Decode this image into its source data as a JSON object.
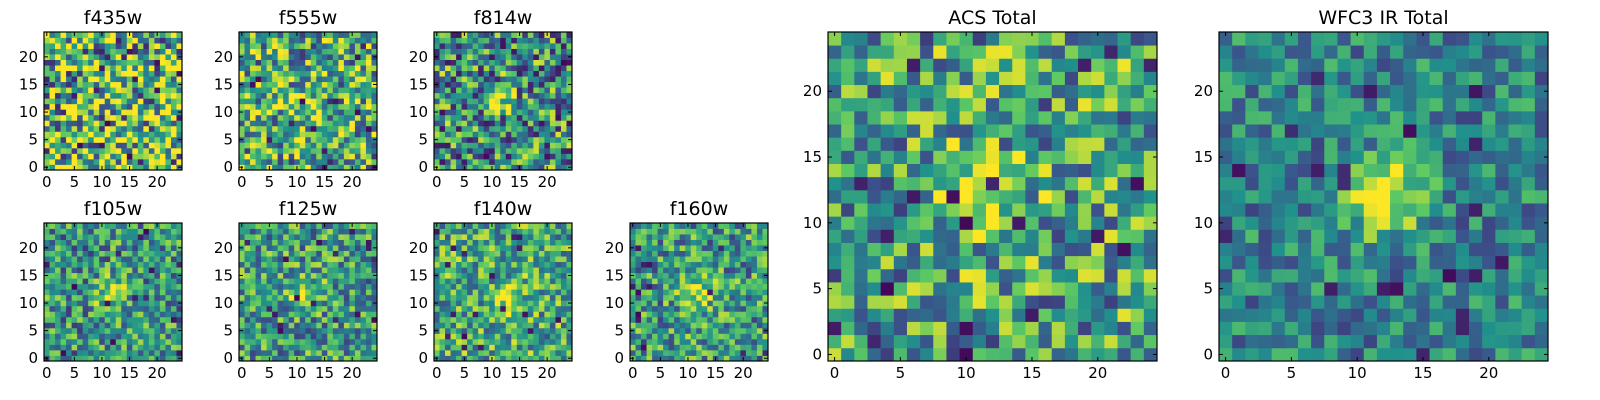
{
  "colormap": [
    "#440154",
    "#3b528b",
    "#21918c",
    "#5ec962",
    "#fde725"
  ],
  "chart_data": [
    {
      "type": "heatmap",
      "title": "f435w",
      "grid": [
        25,
        25
      ],
      "seed": 11,
      "blob": [
        12,
        12
      ],
      "blob_strength": 0.0,
      "noise": 0.55,
      "base": 0.66,
      "xticks": [
        "0",
        "5",
        "10",
        "15",
        "20"
      ],
      "yticks": [
        "0",
        "5",
        "10",
        "15",
        "20"
      ]
    },
    {
      "type": "heatmap",
      "title": "f555w",
      "grid": [
        25,
        25
      ],
      "seed": 23,
      "blob": [
        11,
        12
      ],
      "blob_strength": 0.25,
      "noise": 0.45,
      "base": 0.62,
      "xticks": [
        "0",
        "5",
        "10",
        "15",
        "20"
      ],
      "yticks": [
        "0",
        "5",
        "10",
        "15",
        "20"
      ]
    },
    {
      "type": "heatmap",
      "title": "f814w",
      "grid": [
        25,
        25
      ],
      "seed": 37,
      "blob": [
        11,
        12
      ],
      "blob_strength": 0.35,
      "noise": 0.45,
      "base": 0.5,
      "xticks": [
        "0",
        "5",
        "10",
        "15",
        "20"
      ],
      "yticks": [
        "0",
        "5",
        "10",
        "15",
        "20"
      ]
    },
    {
      "type": "heatmap",
      "title": "f105w",
      "grid": [
        25,
        25
      ],
      "seed": 41,
      "blob": [
        12,
        12
      ],
      "blob_strength": 0.45,
      "noise": 0.35,
      "base": 0.52,
      "xticks": [
        "0",
        "5",
        "10",
        "15",
        "20"
      ],
      "yticks": [
        "0",
        "5",
        "10",
        "15",
        "20"
      ]
    },
    {
      "type": "heatmap",
      "title": "f125w",
      "grid": [
        25,
        25
      ],
      "seed": 53,
      "blob": [
        11,
        12
      ],
      "blob_strength": 0.35,
      "noise": 0.35,
      "base": 0.55,
      "xticks": [
        "0",
        "5",
        "10",
        "15",
        "20"
      ],
      "yticks": [
        "0",
        "5",
        "10",
        "15",
        "20"
      ]
    },
    {
      "type": "heatmap",
      "title": "f140w",
      "grid": [
        25,
        25
      ],
      "seed": 67,
      "blob": [
        13,
        11
      ],
      "blob_strength": 0.35,
      "noise": 0.35,
      "base": 0.6,
      "xticks": [
        "0",
        "5",
        "10",
        "15",
        "20"
      ],
      "yticks": [
        "0",
        "5",
        "10",
        "15",
        "20"
      ]
    },
    {
      "type": "heatmap",
      "title": "f160w",
      "grid": [
        25,
        25
      ],
      "seed": 79,
      "blob": [
        12,
        12
      ],
      "blob_strength": 0.4,
      "noise": 0.35,
      "base": 0.55,
      "xticks": [
        "0",
        "5",
        "10",
        "15",
        "20"
      ],
      "yticks": [
        "0",
        "5",
        "10",
        "15",
        "20"
      ]
    },
    {
      "type": "heatmap",
      "title": "ACS Total",
      "grid": [
        25,
        25
      ],
      "seed": 83,
      "blob": [
        11,
        12
      ],
      "blob_strength": 0.45,
      "noise": 0.4,
      "base": 0.58,
      "xticks": [
        "0",
        "5",
        "10",
        "15",
        "20"
      ],
      "yticks": [
        "0",
        "5",
        "10",
        "15",
        "20"
      ]
    },
    {
      "type": "heatmap",
      "title": "WFC3 IR Total",
      "grid": [
        25,
        25
      ],
      "seed": 97,
      "blob": [
        12,
        12
      ],
      "blob_strength": 0.6,
      "noise": 0.25,
      "base": 0.45,
      "xticks": [
        "0",
        "5",
        "10",
        "15",
        "20"
      ],
      "yticks": [
        "0",
        "5",
        "10",
        "15",
        "20"
      ]
    }
  ]
}
